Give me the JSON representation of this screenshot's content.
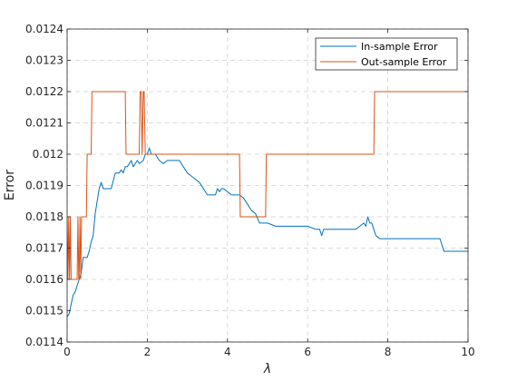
{
  "chart_data": {
    "type": "line",
    "title": "",
    "xlabel": "λ",
    "ylabel": "Error",
    "xlim": [
      0,
      10
    ],
    "ylim": [
      0.0114,
      0.0124
    ],
    "xticks": [
      "0",
      "2",
      "4",
      "6",
      "8",
      "10"
    ],
    "yticks": [
      "0.0114",
      "0.0115",
      "0.0116",
      "0.0117",
      "0.0118",
      "0.0119",
      "0.012",
      "0.0121",
      "0.0122",
      "0.0123",
      "0.0124"
    ],
    "grid": true,
    "legend_position": "top-right",
    "series": [
      {
        "name": "In-sample Error",
        "color": "#0072BD",
        "x": [
          0,
          0.05,
          0.1,
          0.15,
          0.2,
          0.25,
          0.3,
          0.35,
          0.4,
          0.5,
          0.55,
          0.6,
          0.65,
          0.7,
          0.75,
          0.8,
          0.85,
          0.9,
          0.95,
          1.0,
          1.1,
          1.2,
          1.3,
          1.35,
          1.4,
          1.45,
          1.5,
          1.6,
          1.65,
          1.7,
          1.75,
          1.8,
          1.9,
          1.95,
          2.0,
          2.05,
          2.1,
          2.2,
          2.3,
          2.4,
          2.5,
          2.6,
          2.7,
          2.8,
          2.9,
          3.0,
          3.1,
          3.2,
          3.3,
          3.4,
          3.5,
          3.6,
          3.7,
          3.75,
          3.8,
          3.85,
          3.9,
          4.0,
          4.1,
          4.2,
          4.3,
          4.4,
          4.5,
          4.6,
          4.7,
          4.8,
          5.0,
          5.2,
          5.5,
          6.0,
          6.2,
          6.3,
          6.35,
          6.4,
          6.5,
          6.8,
          7.0,
          7.2,
          7.3,
          7.4,
          7.45,
          7.5,
          7.55,
          7.6,
          7.65,
          7.7,
          7.8,
          8.0,
          8.5,
          9.0,
          9.3,
          9.4,
          9.5,
          9.7,
          10.0
        ],
        "values": [
          0.01148,
          0.01149,
          0.01152,
          0.01155,
          0.01156,
          0.01158,
          0.0116,
          0.01162,
          0.01167,
          0.01167,
          0.01169,
          0.01172,
          0.01174,
          0.01181,
          0.01185,
          0.01189,
          0.01191,
          0.01189,
          0.01189,
          0.01189,
          0.01189,
          0.01194,
          0.01194,
          0.01195,
          0.01194,
          0.01196,
          0.01196,
          0.01198,
          0.01196,
          0.01197,
          0.01198,
          0.01197,
          0.01198,
          0.012,
          0.012,
          0.01202,
          0.012,
          0.012,
          0.01198,
          0.01197,
          0.01198,
          0.01198,
          0.01198,
          0.01198,
          0.01196,
          0.01194,
          0.01193,
          0.01192,
          0.01191,
          0.01189,
          0.01187,
          0.01187,
          0.01187,
          0.01189,
          0.01188,
          0.01189,
          0.01189,
          0.01188,
          0.01187,
          0.01187,
          0.01187,
          0.01186,
          0.01184,
          0.01182,
          0.01181,
          0.01178,
          0.01178,
          0.01177,
          0.01177,
          0.01177,
          0.01176,
          0.01176,
          0.01174,
          0.01176,
          0.01176,
          0.01176,
          0.01176,
          0.01176,
          0.01177,
          0.01178,
          0.01177,
          0.0118,
          0.01178,
          0.01178,
          0.01176,
          0.01174,
          0.01173,
          0.01173,
          0.01173,
          0.01173,
          0.01173,
          0.01169,
          0.01169,
          0.01169,
          0.01169
        ]
      },
      {
        "name": "Out-sample Error",
        "color": "#D95319",
        "x": [
          0,
          0.02,
          0.04,
          0.06,
          0.08,
          0.1,
          0.2,
          0.25,
          0.27,
          0.29,
          0.3,
          0.32,
          0.34,
          0.36,
          0.38,
          0.4,
          0.45,
          0.48,
          0.5,
          0.52,
          0.55,
          0.6,
          0.62,
          0.65,
          1.45,
          1.47,
          1.8,
          1.82,
          1.85,
          1.87,
          1.9,
          1.92,
          1.95,
          1.97,
          2.0,
          4.3,
          4.32,
          4.95,
          4.97,
          7.65,
          7.67,
          10.0
        ],
        "values": [
          0.0118,
          0.0116,
          0.0118,
          0.0116,
          0.0118,
          0.0116,
          0.0116,
          0.0116,
          0.0118,
          0.0116,
          0.0116,
          0.0118,
          0.0116,
          0.0118,
          0.0118,
          0.0118,
          0.0118,
          0.0118,
          0.012,
          0.012,
          0.012,
          0.012,
          0.0122,
          0.0122,
          0.0122,
          0.012,
          0.012,
          0.0122,
          0.0122,
          0.012,
          0.0122,
          0.0122,
          0.012,
          0.012,
          0.012,
          0.012,
          0.0118,
          0.0118,
          0.012,
          0.012,
          0.0122,
          0.0122
        ]
      }
    ]
  }
}
